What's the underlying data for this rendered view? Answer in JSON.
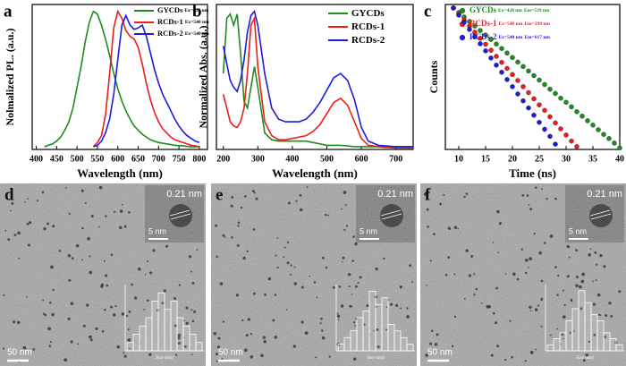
{
  "chart_data": [
    {
      "type": "line",
      "panel": "a",
      "xlabel": "Wavelength (nm)",
      "ylabel": "Nolmalized PL. (a.u.)",
      "xlim": [
        390,
        820
      ],
      "xticks": [
        400,
        450,
        500,
        550,
        600,
        650,
        700,
        750,
        800
      ],
      "ylim": [
        0,
        1.05
      ],
      "x": [
        420,
        430,
        440,
        450,
        460,
        470,
        480,
        490,
        500,
        510,
        520,
        530,
        540,
        550,
        560,
        570,
        580,
        590,
        600,
        610,
        620,
        630,
        640,
        650,
        660,
        670,
        680,
        690,
        700,
        710,
        720,
        730,
        740,
        750,
        760,
        770,
        780,
        790,
        800
      ],
      "series": [
        {
          "name": "GYCDs",
          "excitation": "Ex=420 nm",
          "color": "#1e8c1e",
          "values": [
            0.02,
            0.03,
            0.04,
            0.06,
            0.09,
            0.14,
            0.2,
            0.3,
            0.45,
            0.6,
            0.78,
            0.92,
            1.0,
            0.98,
            0.9,
            0.8,
            0.68,
            0.55,
            0.44,
            0.35,
            0.28,
            0.22,
            0.17,
            0.14,
            0.11,
            0.09,
            0.07,
            0.06,
            0.05,
            0.045,
            0.04,
            0.035,
            0.03,
            0.028,
            0.025,
            0.022,
            0.02,
            0.02,
            0.02
          ]
        },
        {
          "name": "RCDs-1",
          "excitation": "Ex=540 nm",
          "color": "#ee1c1c",
          "values": [
            null,
            null,
            null,
            null,
            null,
            null,
            null,
            null,
            null,
            null,
            null,
            null,
            0.02,
            0.05,
            0.1,
            0.25,
            0.55,
            0.88,
            1.0,
            0.95,
            0.86,
            0.82,
            0.8,
            0.74,
            0.62,
            0.48,
            0.36,
            0.27,
            0.2,
            0.15,
            0.12,
            0.09,
            0.07,
            0.06,
            0.05,
            0.04,
            0.03,
            0.025,
            0.02
          ]
        },
        {
          "name": "RCDs-2",
          "excitation": "Ex=540 nm",
          "color": "#1c1cdc",
          "values": [
            null,
            null,
            null,
            null,
            null,
            null,
            null,
            null,
            null,
            null,
            null,
            null,
            0.02,
            0.03,
            0.06,
            0.12,
            0.22,
            0.4,
            0.65,
            0.9,
            0.97,
            0.9,
            0.87,
            0.88,
            0.9,
            0.82,
            0.7,
            0.58,
            0.48,
            0.4,
            0.34,
            0.28,
            0.22,
            0.17,
            0.13,
            0.1,
            0.08,
            0.06,
            0.05
          ]
        }
      ]
    },
    {
      "type": "line",
      "panel": "b",
      "xlabel": "Wavelength (nm)",
      "ylabel": "Normalized Abs. (a.u.)",
      "xlim": [
        180,
        750
      ],
      "xticks": [
        200,
        300,
        400,
        500,
        600,
        700
      ],
      "ylim": [
        0,
        1.05
      ],
      "x": [
        200,
        210,
        220,
        230,
        240,
        250,
        260,
        270,
        280,
        290,
        300,
        320,
        340,
        360,
        380,
        400,
        420,
        440,
        460,
        480,
        500,
        520,
        540,
        560,
        580,
        600,
        620,
        650,
        700,
        750
      ],
      "series": [
        {
          "name": "GYCDs",
          "color": "#1e8c1e",
          "values": [
            0.55,
            0.95,
            0.98,
            0.9,
            0.98,
            0.7,
            0.35,
            0.3,
            0.45,
            0.6,
            0.45,
            0.12,
            0.07,
            0.06,
            0.06,
            0.06,
            0.06,
            0.06,
            0.05,
            0.04,
            0.03,
            0.03,
            0.03,
            0.025,
            0.02,
            0.02,
            0.02,
            0.02,
            0.02,
            0.02
          ]
        },
        {
          "name": "RCDs-1",
          "color": "#ee1c1c",
          "values": [
            0.4,
            0.3,
            0.2,
            0.17,
            0.16,
            0.2,
            0.3,
            0.55,
            0.9,
            0.95,
            0.6,
            0.2,
            0.1,
            0.07,
            0.07,
            0.08,
            0.09,
            0.1,
            0.13,
            0.18,
            0.26,
            0.34,
            0.37,
            0.32,
            0.2,
            0.08,
            0.03,
            0.02,
            0.01,
            0.01
          ]
        },
        {
          "name": "RCDs-2",
          "color": "#1c1cdc",
          "values": [
            0.75,
            0.62,
            0.5,
            0.45,
            0.42,
            0.5,
            0.65,
            0.85,
            0.97,
            1.0,
            0.9,
            0.55,
            0.3,
            0.22,
            0.2,
            0.2,
            0.2,
            0.22,
            0.27,
            0.34,
            0.43,
            0.52,
            0.55,
            0.5,
            0.36,
            0.16,
            0.06,
            0.03,
            0.02,
            0.02
          ]
        }
      ]
    },
    {
      "type": "scatter",
      "panel": "c",
      "xlabel": "Time (ns)",
      "ylabel": "Counts",
      "log_y": true,
      "xlim": [
        7.5,
        40
      ],
      "xticks": [
        10,
        15,
        20,
        25,
        30,
        35,
        40
      ],
      "ylim": [
        1,
        10000
      ],
      "series": [
        {
          "name": "GYCDs",
          "excitation": "Ex=420 nm",
          "emission": "Em=539 nm",
          "color": "#1e8c1e",
          "x": [
            9,
            10,
            11,
            12,
            13,
            14,
            15,
            16,
            17,
            18,
            19,
            20,
            21,
            22,
            23,
            24,
            25,
            26,
            27,
            28,
            29,
            30,
            31,
            32,
            33,
            34,
            35,
            36,
            37,
            38,
            39,
            40
          ],
          "values": [
            8000,
            6010,
            4510,
            3390,
            2550,
            1910,
            1440,
            1080,
            811,
            609,
            458,
            344,
            258,
            194,
            146,
            109,
            82,
            62,
            46,
            35,
            26,
            20,
            15,
            11,
            8.3,
            6.2,
            4.7,
            3.5,
            2.6,
            2,
            1.5,
            1.1
          ]
        },
        {
          "name": "RCDs-1",
          "excitation": "Ex=540 nm",
          "emission": "Em=599 nm",
          "color": "#ee1c1c",
          "x": [
            9,
            10,
            11,
            12,
            13,
            14,
            15,
            16,
            17,
            18,
            19,
            20,
            21,
            22,
            23,
            24,
            25,
            26,
            27,
            28,
            29,
            30,
            31,
            32
          ],
          "values": [
            8000,
            5450,
            3710,
            2530,
            1720,
            1170,
            800,
            545,
            371,
            253,
            172,
            117,
            80,
            54,
            37,
            25,
            17,
            12,
            8,
            5.4,
            3.7,
            2.5,
            1.7,
            1.2
          ]
        },
        {
          "name": "RCDs-2",
          "excitation": "Ex=540 nm",
          "emission": "Em=617 nm",
          "color": "#1c1cdc",
          "x": [
            9,
            10,
            11,
            12,
            13,
            14,
            15,
            16,
            17,
            18,
            19,
            20,
            21,
            22,
            23,
            24,
            25,
            26,
            27,
            28
          ],
          "values": [
            8000,
            5080,
            3230,
            2050,
            1300,
            826,
            525,
            333,
            212,
            135,
            85,
            54,
            34,
            22,
            14,
            8.8,
            5.6,
            3.6,
            2.3,
            1.4
          ]
        }
      ]
    },
    {
      "type": "histogram",
      "xlabel": "Size (nm)",
      "bins": [
        1,
        1.5,
        2,
        2.5,
        3,
        3.5,
        4,
        4.5,
        5,
        5.5,
        6,
        6.5,
        7
      ],
      "values": [
        1,
        2,
        3,
        4,
        6,
        7,
        5,
        6,
        4,
        3,
        2,
        1
      ],
      "ylim": [
        0,
        8
      ]
    },
    {
      "type": "histogram",
      "xlabel": "Size (nm)",
      "bins": [
        1,
        1.5,
        2,
        2.5,
        3,
        3.5,
        4,
        4.5,
        5,
        5.5,
        6,
        6.5,
        7
      ],
      "values": [
        1,
        2,
        3,
        5,
        6,
        9,
        7,
        8,
        4,
        3,
        2,
        1
      ],
      "ylim": [
        0,
        10
      ]
    },
    {
      "type": "histogram",
      "xlabel": "Size (nm)",
      "bins": [
        1,
        1.5,
        2,
        2.5,
        3,
        3.5,
        4,
        4.5,
        5,
        5.5,
        6,
        6.5,
        7
      ],
      "values": [
        1,
        2,
        3,
        5,
        7,
        10,
        8,
        6,
        5,
        3,
        2,
        1
      ],
      "ylim": [
        0,
        11
      ]
    }
  ],
  "tem_panels": [
    {
      "panel": "d",
      "lattice": "0.21 nm",
      "inset_scale": "5 nm",
      "scale": "50 nm"
    },
    {
      "panel": "e",
      "lattice": "0.21 nm",
      "inset_scale": "5 nm",
      "scale": "50 nm"
    },
    {
      "panel": "f",
      "lattice": "0.21 nm",
      "inset_scale": "5 nm",
      "scale": "50 nm"
    }
  ]
}
